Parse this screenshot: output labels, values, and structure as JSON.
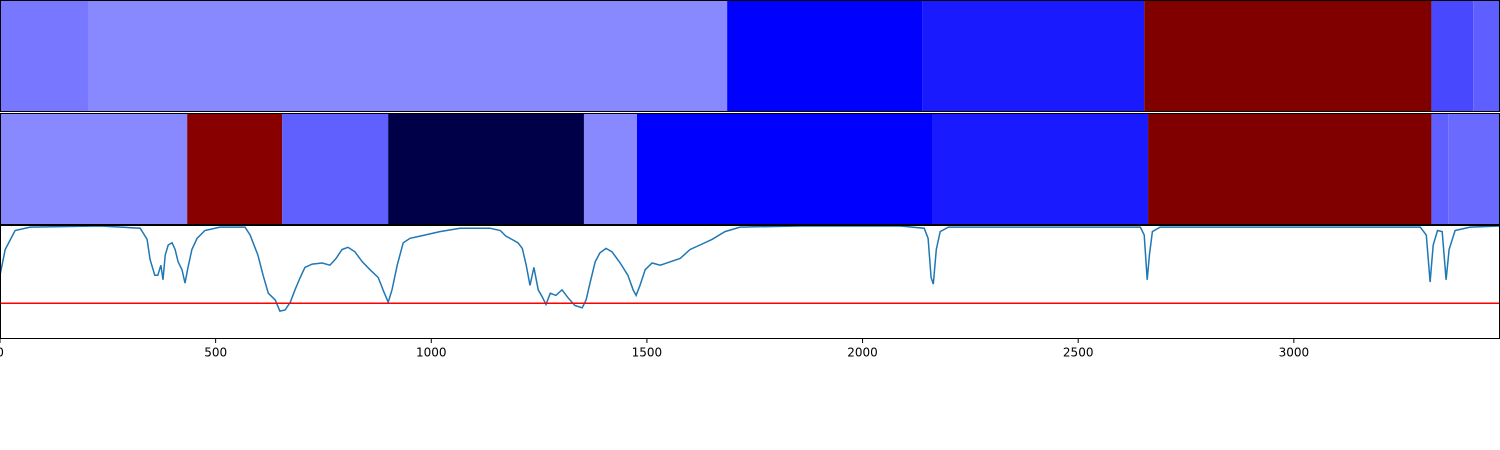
{
  "chart_data": {
    "type": "line",
    "xlim": [
      0,
      3478
    ],
    "ylim": [
      0,
      1
    ],
    "xticks": [
      0,
      500,
      1000,
      1500,
      2000,
      2500,
      3000
    ],
    "strips": [
      {
        "edges": [
          0,
          204,
          1686,
          2138,
          2653,
          3319,
          3416,
          3478
        ],
        "colors": [
          "#7777ff",
          "#8888ff",
          "#0000ff",
          "#1a1aff",
          "#800000",
          "#4848ff",
          "#5f5fff"
        ]
      },
      {
        "edges": [
          0,
          434,
          654,
          900,
          1354,
          1477,
          2161,
          2662,
          3319,
          3358,
          3478
        ],
        "colors": [
          "#8888ff",
          "#880000",
          "#6060ff",
          "#000048",
          "#8888ff",
          "#0000ff",
          "#1a1aff",
          "#800000",
          "#6060ff",
          "#6a6aff"
        ]
      }
    ],
    "x": [
      0,
      12,
      35,
      70,
      232,
      325,
      341,
      348,
      359,
      366,
      373,
      378,
      383,
      390,
      399,
      406,
      413,
      422,
      429,
      436,
      445,
      457,
      475,
      510,
      568,
      580,
      598,
      610,
      622,
      638,
      649,
      661,
      673,
      684,
      696,
      707,
      724,
      747,
      765,
      779,
      793,
      807,
      823,
      840,
      858,
      877,
      888,
      900,
      909,
      921,
      935,
      951,
      974,
      1020,
      1067,
      1136,
      1160,
      1173,
      1187,
      1201,
      1211,
      1220,
      1229,
      1238,
      1248,
      1257,
      1266,
      1276,
      1289,
      1303,
      1317,
      1333,
      1350,
      1359,
      1368,
      1380,
      1391,
      1405,
      1419,
      1438,
      1456,
      1468,
      1475,
      1484,
      1496,
      1512,
      1531,
      1554,
      1577,
      1600,
      1623,
      1651,
      1681,
      1716,
      1855,
      2087,
      2143,
      2152,
      2159,
      2164,
      2171,
      2180,
      2199,
      2644,
      2653,
      2660,
      2665,
      2672,
      2690,
      3293,
      3307,
      3316,
      3323,
      3333,
      3344,
      3353,
      3360,
      3374,
      3409,
      3478
    ],
    "series": [
      {
        "color": "#1f77b4",
        "values": [
          0.56,
          0.79,
          0.96,
          0.99,
          1.0,
          0.98,
          0.88,
          0.7,
          0.56,
          0.56,
          0.65,
          0.52,
          0.74,
          0.83,
          0.85,
          0.79,
          0.68,
          0.61,
          0.49,
          0.63,
          0.79,
          0.89,
          0.96,
          0.99,
          0.99,
          0.92,
          0.74,
          0.56,
          0.4,
          0.34,
          0.24,
          0.25,
          0.32,
          0.43,
          0.54,
          0.63,
          0.66,
          0.67,
          0.65,
          0.71,
          0.79,
          0.81,
          0.77,
          0.68,
          0.61,
          0.54,
          0.43,
          0.32,
          0.43,
          0.65,
          0.85,
          0.89,
          0.91,
          0.95,
          0.98,
          0.98,
          0.96,
          0.91,
          0.88,
          0.85,
          0.8,
          0.65,
          0.47,
          0.63,
          0.43,
          0.37,
          0.3,
          0.4,
          0.38,
          0.43,
          0.36,
          0.29,
          0.27,
          0.34,
          0.49,
          0.68,
          0.76,
          0.8,
          0.77,
          0.67,
          0.56,
          0.43,
          0.38,
          0.47,
          0.61,
          0.67,
          0.65,
          0.68,
          0.71,
          0.79,
          0.83,
          0.88,
          0.95,
          0.99,
          1.0,
          1.0,
          0.98,
          0.89,
          0.54,
          0.48,
          0.79,
          0.95,
          0.99,
          0.99,
          0.92,
          0.52,
          0.74,
          0.95,
          0.99,
          0.99,
          0.92,
          0.5,
          0.83,
          0.96,
          0.95,
          0.52,
          0.79,
          0.96,
          0.99,
          1.0
        ]
      }
    ],
    "hline": {
      "value": 0.31,
      "color": "#ff0000"
    }
  }
}
